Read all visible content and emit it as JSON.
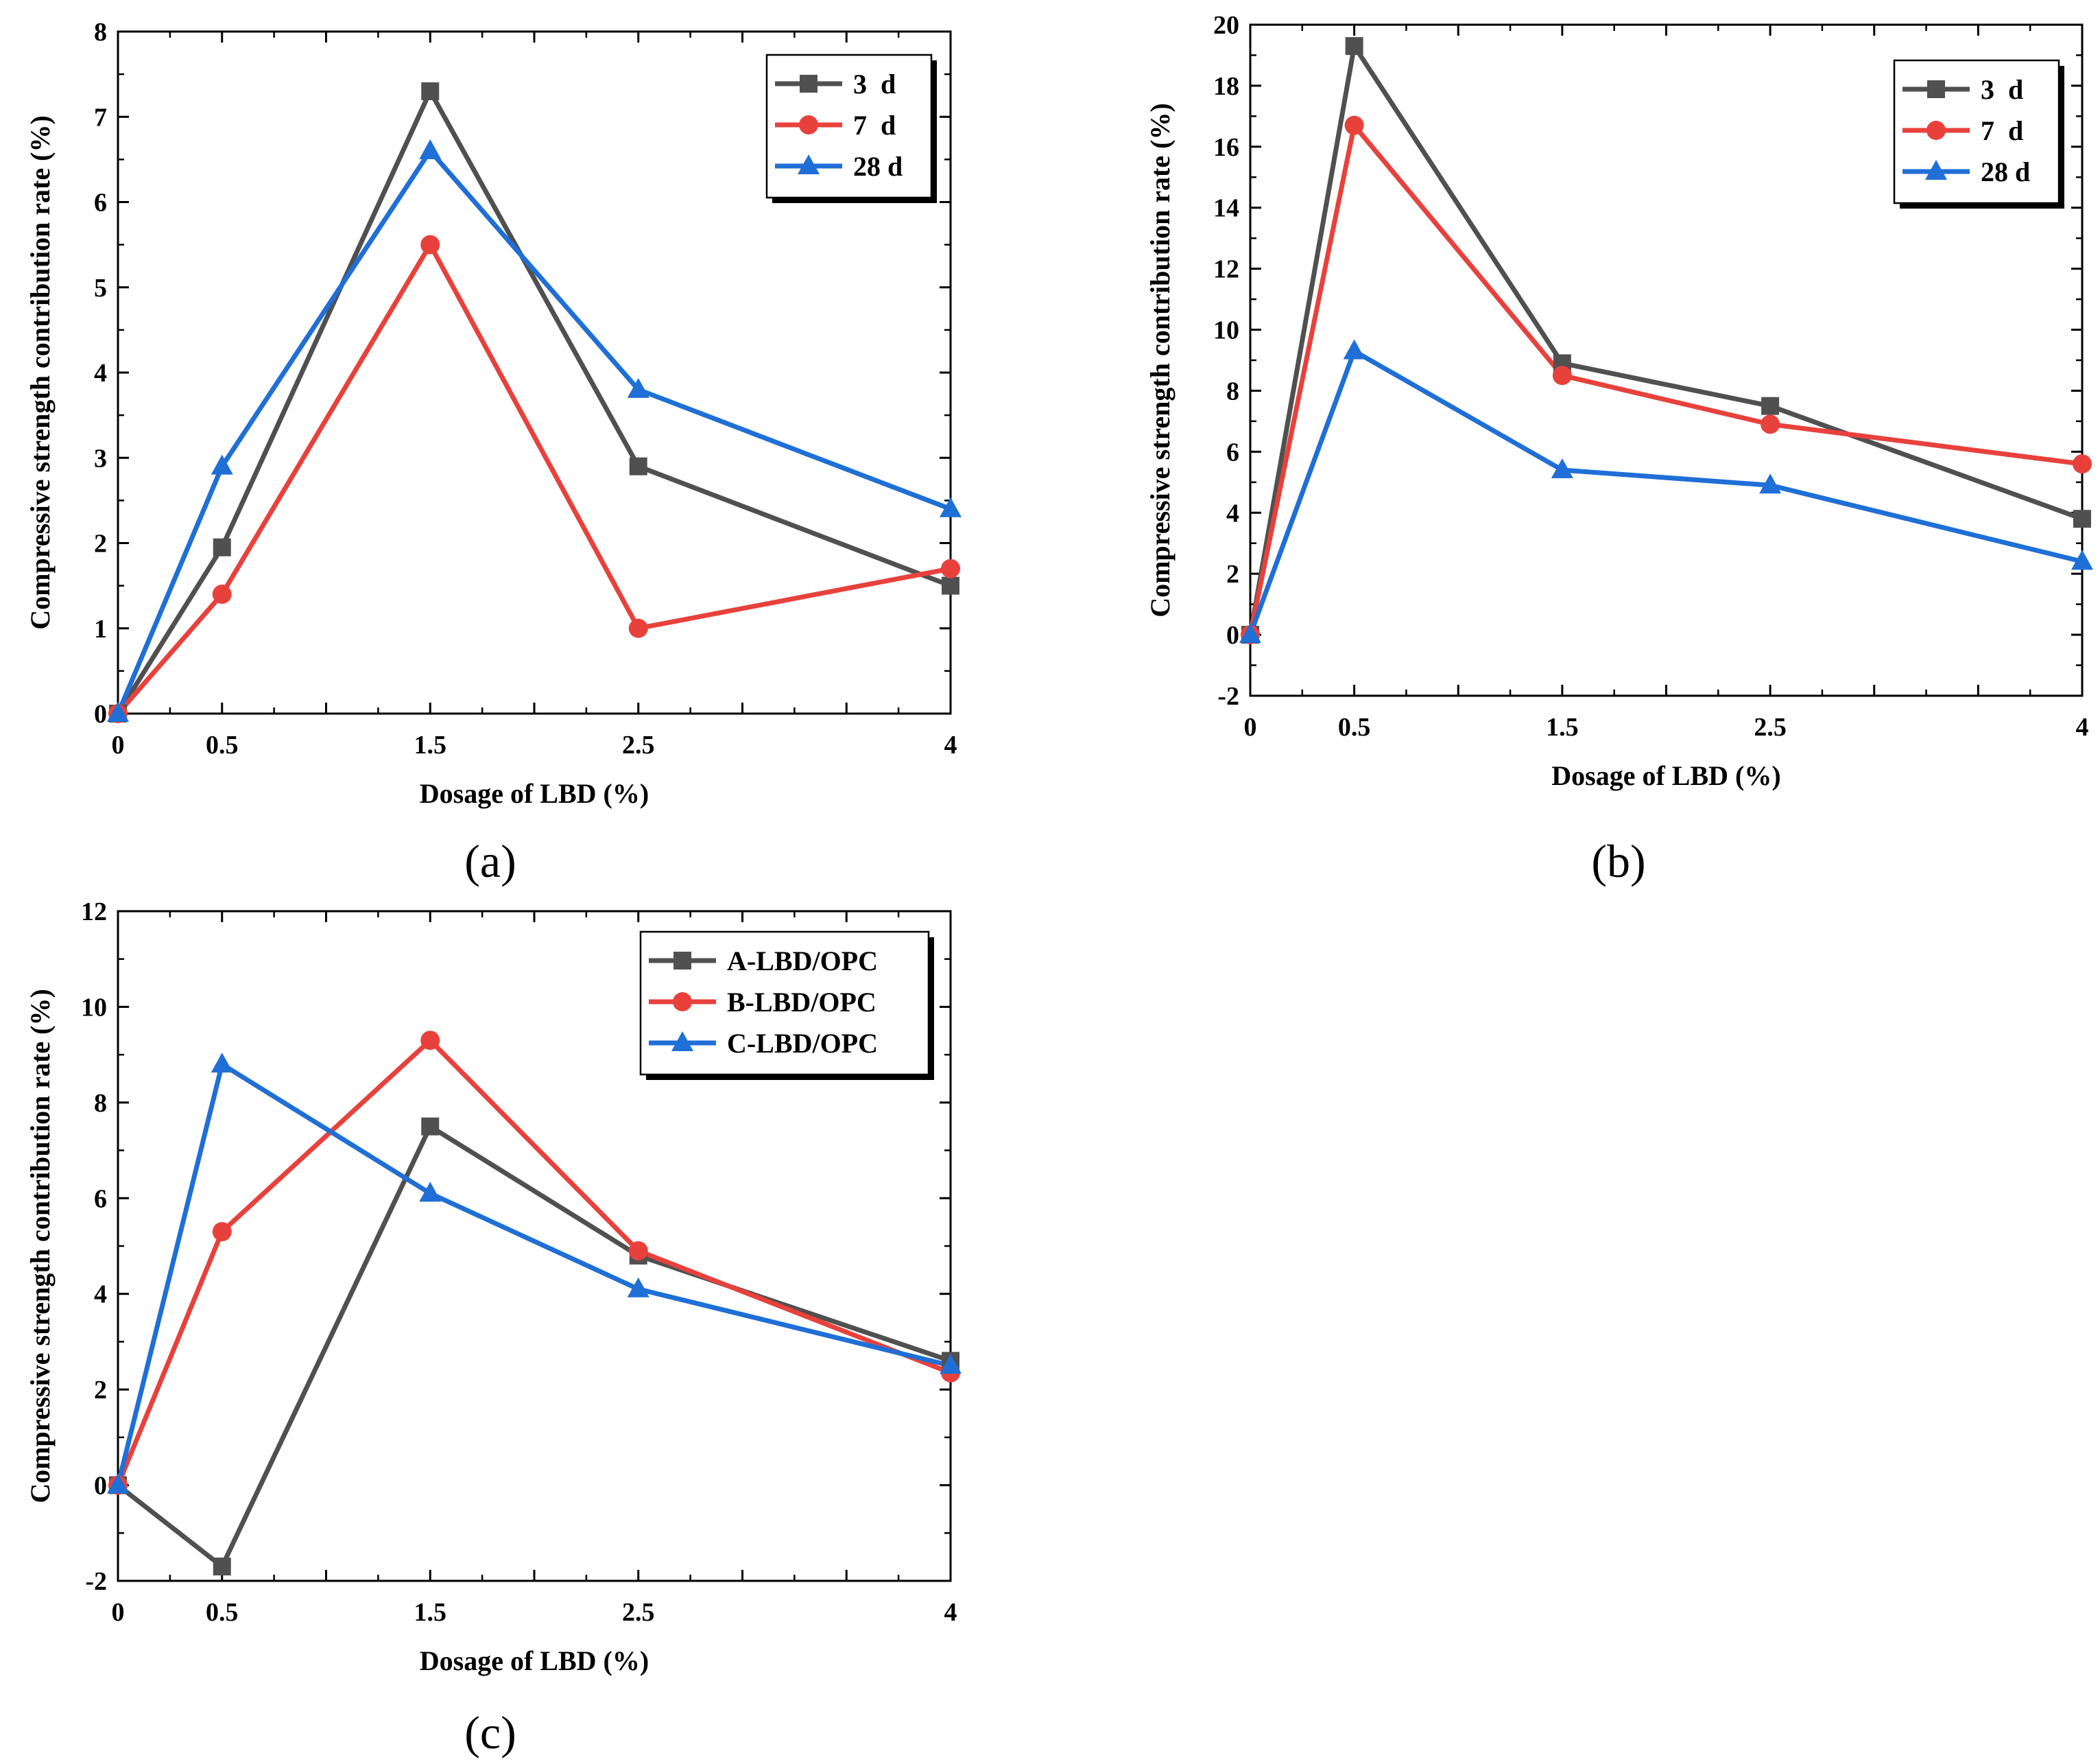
{
  "chart_data": [
    {
      "panel": "(a)",
      "type": "line",
      "x": [
        0,
        0.5,
        1.5,
        2.5,
        4
      ],
      "x_tick_labels": [
        "0",
        "0.5",
        "1.5",
        "2.5",
        "4"
      ],
      "xlabel": "Dosage of LBD (%)",
      "ylabel": "Compressive strength contribution rate (%)",
      "xlim": [
        0,
        4
      ],
      "ylim": [
        0,
        8
      ],
      "y_ticks": [
        0,
        1,
        2,
        3,
        4,
        5,
        6,
        7,
        8
      ],
      "legend_position": "top-right",
      "series": [
        {
          "name": "3  d",
          "color": "#505050",
          "marker": "square",
          "values": [
            0,
            1.95,
            7.3,
            2.9,
            1.5
          ]
        },
        {
          "name": "7  d",
          "color": "#e8413c",
          "marker": "circle",
          "values": [
            0,
            1.4,
            5.5,
            1.0,
            1.7
          ]
        },
        {
          "name": "28 d",
          "color": "#1f6fd6",
          "marker": "triangle",
          "values": [
            0,
            2.9,
            6.6,
            3.8,
            2.4
          ]
        }
      ]
    },
    {
      "panel": "(b)",
      "type": "line",
      "x": [
        0,
        0.5,
        1.5,
        2.5,
        4
      ],
      "x_tick_labels": [
        "0",
        "0.5",
        "1.5",
        "2.5",
        "4"
      ],
      "xlabel": "Dosage of LBD (%)",
      "ylabel": "Compressive strength contribution rate (%)",
      "xlim": [
        0,
        4
      ],
      "ylim": [
        -2,
        20
      ],
      "y_ticks": [
        -2,
        0,
        2,
        4,
        6,
        8,
        10,
        12,
        14,
        16,
        18,
        20
      ],
      "legend_position": "top-right",
      "series": [
        {
          "name": "3  d",
          "color": "#505050",
          "marker": "square",
          "values": [
            0,
            19.3,
            8.9,
            7.5,
            3.8
          ]
        },
        {
          "name": "7  d",
          "color": "#e8413c",
          "marker": "circle",
          "values": [
            0,
            16.7,
            8.5,
            6.9,
            5.6
          ]
        },
        {
          "name": "28 d",
          "color": "#1f6fd6",
          "marker": "triangle",
          "values": [
            0,
            9.3,
            5.4,
            4.9,
            2.4
          ]
        }
      ]
    },
    {
      "panel": "(c)",
      "type": "line",
      "x": [
        0,
        0.5,
        1.5,
        2.5,
        4
      ],
      "x_tick_labels": [
        "0",
        "0.5",
        "1.5",
        "2.5",
        "4"
      ],
      "xlabel": "Dosage of LBD (%)",
      "ylabel": "Compressive strength contribution rate (%)",
      "xlim": [
        0,
        4
      ],
      "ylim": [
        -2,
        12
      ],
      "y_ticks": [
        -2,
        0,
        2,
        4,
        6,
        8,
        10,
        12
      ],
      "legend_position": "top-right",
      "series": [
        {
          "name": "A-LBD/OPC",
          "color": "#505050",
          "marker": "square",
          "values": [
            0,
            -1.7,
            7.5,
            4.8,
            2.6
          ]
        },
        {
          "name": "B-LBD/OPC",
          "color": "#e8413c",
          "marker": "circle",
          "values": [
            0,
            5.3,
            9.3,
            4.9,
            2.35
          ]
        },
        {
          "name": "C-LBD/OPC",
          "color": "#1f6fd6",
          "marker": "triangle",
          "values": [
            0,
            8.8,
            6.1,
            4.1,
            2.5
          ]
        }
      ]
    }
  ]
}
